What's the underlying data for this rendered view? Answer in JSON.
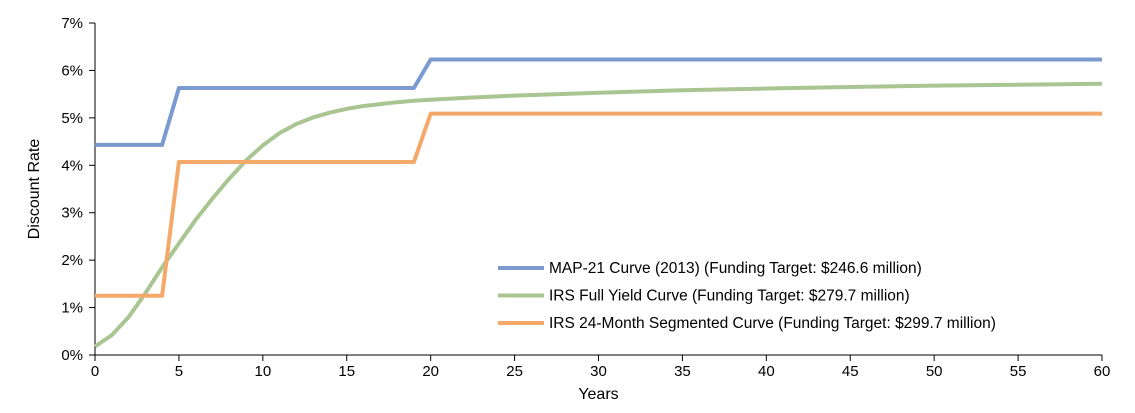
{
  "chart_data": {
    "type": "line",
    "xlabel": "Years",
    "ylabel": "Discount Rate",
    "xlim": [
      0,
      60
    ],
    "ylim": [
      0,
      7
    ],
    "x_ticks": [
      0,
      5,
      10,
      15,
      20,
      25,
      30,
      35,
      40,
      45,
      50,
      55,
      60
    ],
    "y_ticks": [
      0,
      1,
      2,
      3,
      4,
      5,
      6,
      7
    ],
    "y_tick_labels": [
      "0%",
      "1%",
      "2%",
      "3%",
      "4%",
      "5%",
      "6%",
      "7%"
    ],
    "grid": false,
    "legend_position": "bottom-right",
    "series": [
      {
        "name": "MAP-21 Curve (2013) (Funding Target: $246.6 million)",
        "color": "#7b9ad0",
        "x": [
          0,
          4,
          5,
          19,
          20,
          60
        ],
        "y": [
          4.43,
          4.43,
          5.63,
          5.63,
          6.23,
          6.23
        ]
      },
      {
        "name": "IRS Full Yield Curve (Funding Target: $279.7 million)",
        "color": "#a9c592",
        "x": [
          0,
          1,
          2,
          3,
          4,
          5,
          6,
          7,
          8,
          9,
          10,
          11,
          12,
          13,
          14,
          15,
          16,
          17,
          18,
          19,
          20,
          22,
          25,
          30,
          35,
          40,
          45,
          50,
          55,
          60
        ],
        "y": [
          0.18,
          0.42,
          0.8,
          1.3,
          1.85,
          2.35,
          2.85,
          3.3,
          3.72,
          4.1,
          4.42,
          4.68,
          4.87,
          5.01,
          5.11,
          5.19,
          5.25,
          5.29,
          5.33,
          5.36,
          5.38,
          5.42,
          5.47,
          5.53,
          5.58,
          5.62,
          5.65,
          5.68,
          5.7,
          5.72
        ]
      },
      {
        "name": "IRS 24-Month Segmented Curve (Funding Target: $299.7 million)",
        "color": "#f4a86a",
        "x": [
          0,
          4,
          5,
          19,
          20,
          60
        ],
        "y": [
          1.25,
          1.25,
          4.07,
          4.07,
          5.09,
          5.09
        ]
      }
    ]
  }
}
